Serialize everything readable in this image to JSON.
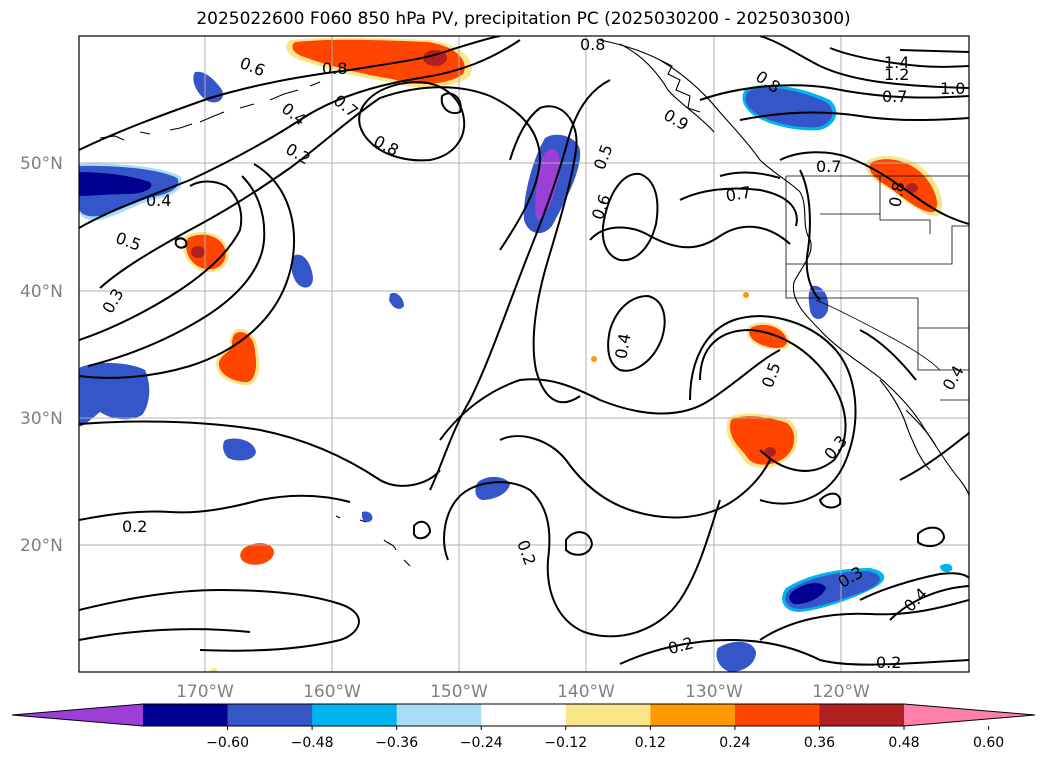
{
  "title": "2025022600 F060 850 hPa PV, precipitation PC (2025030200 - 2025030300)",
  "lat_labels": [
    "50°N",
    "40°N",
    "30°N",
    "20°N"
  ],
  "lon_labels": [
    "170°W",
    "160°W",
    "150°W",
    "140°W",
    "130°W",
    "120°W"
  ],
  "contour_labels": [
    "0.8",
    "0.6",
    "0.8",
    "0.4",
    "0.7",
    "0.2",
    "0.8",
    "0.8",
    "0.9",
    "1.4",
    "1.2",
    "1.0",
    "0.7",
    "0.4",
    "0.5",
    "0.3",
    "0.5",
    "0.6",
    "0.7",
    "0.7",
    "0.8",
    "0.4",
    "0.5",
    "0.3",
    "0.4",
    "0.2",
    "0.2",
    "0.3",
    "0.2",
    "0.4",
    "0.2"
  ],
  "colorbar": {
    "tick_labels": [
      "−0.60",
      "−0.48",
      "−0.36",
      "−0.24",
      "−0.12",
      "0.12",
      "0.24",
      "0.36",
      "0.48",
      "0.60"
    ],
    "colors": [
      "#9c3fd9",
      "#000090",
      "#3556c8",
      "#00b4f0",
      "#aadcf8",
      "#ffffff",
      "#fae68a",
      "#ff9a00",
      "#ff4500",
      "#b02020",
      "#ff80a8"
    ]
  }
}
